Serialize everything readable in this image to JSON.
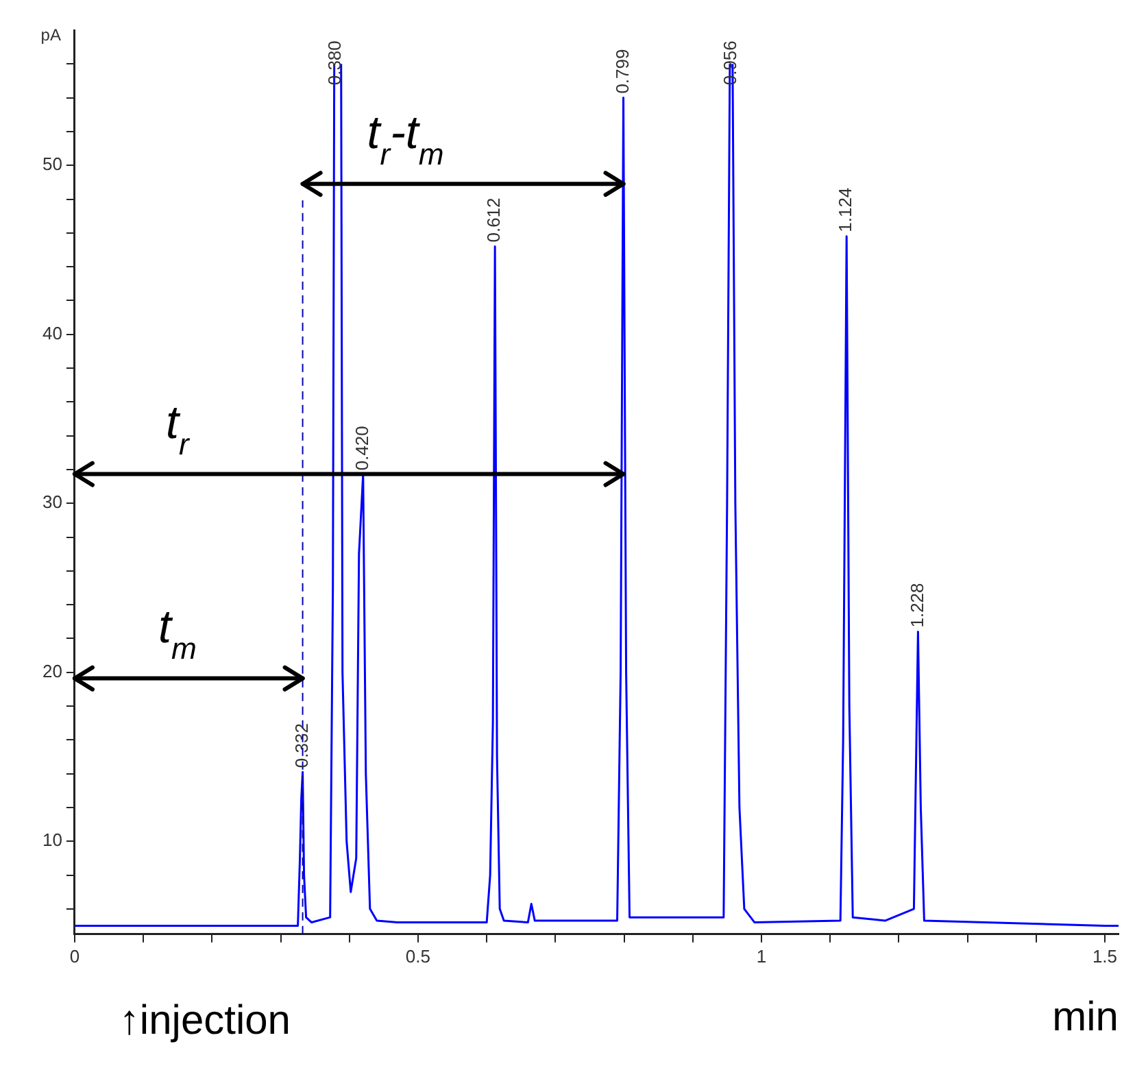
{
  "chart_data": {
    "type": "line",
    "ylabel": "pA",
    "xlabel": "min",
    "xlim": [
      0,
      1.52
    ],
    "ylim": [
      4.5,
      58
    ],
    "xticks": [
      0,
      {
        "value": 0.1,
        "label": null
      },
      {
        "value": 0.2,
        "label": null
      },
      {
        "value": 0.3,
        "label": null
      },
      {
        "value": 0.4,
        "label": null
      },
      0.5,
      {
        "value": 0.6,
        "label": null
      },
      {
        "value": 0.7,
        "label": null
      },
      {
        "value": 0.8,
        "label": null
      },
      {
        "value": 0.9,
        "label": null
      },
      1,
      {
        "value": 1.1,
        "label": null
      },
      {
        "value": 1.2,
        "label": null
      },
      {
        "value": 1.3,
        "label": null
      },
      {
        "value": 1.4,
        "label": null
      },
      1.5
    ],
    "yticks": [
      {
        "value": 6,
        "label": null
      },
      {
        "value": 8,
        "label": null
      },
      10,
      {
        "value": 12,
        "label": null
      },
      {
        "value": 14,
        "label": null
      },
      {
        "value": 16,
        "label": null
      },
      {
        "value": 18,
        "label": null
      },
      20,
      {
        "value": 22,
        "label": null
      },
      {
        "value": 24,
        "label": null
      },
      {
        "value": 26,
        "label": null
      },
      {
        "value": 28,
        "label": null
      },
      30,
      {
        "value": 32,
        "label": null
      },
      {
        "value": 34,
        "label": null
      },
      {
        "value": 36,
        "label": null
      },
      {
        "value": 38,
        "label": null
      },
      40,
      {
        "value": 42,
        "label": null
      },
      {
        "value": 44,
        "label": null
      },
      {
        "value": 46,
        "label": null
      },
      {
        "value": 48,
        "label": null
      },
      50,
      {
        "value": 52,
        "label": null
      },
      {
        "value": 54,
        "label": null
      },
      {
        "value": 56,
        "label": null
      }
    ],
    "grid": false,
    "legend": false,
    "marker": "none",
    "series": [
      {
        "color": "#0000ff",
        "x": [
          0,
          0.325,
          0.328,
          0.33,
          0.332,
          0.334,
          0.337,
          0.345,
          0.372,
          0.376,
          0.378,
          0.38,
          0.386,
          0.388,
          0.39,
          0.396,
          0.402,
          0.41,
          0.414,
          0.42,
          0.424,
          0.43,
          0.44,
          0.47,
          0.6,
          0.605,
          0.609,
          0.612,
          0.615,
          0.619,
          0.625,
          0.66,
          0.665,
          0.67,
          0.79,
          0.795,
          0.799,
          0.803,
          0.808,
          0.945,
          0.95,
          0.954,
          0.956,
          0.958,
          0.962,
          0.968,
          0.975,
          0.99,
          1.115,
          1.119,
          1.124,
          1.128,
          1.133,
          1.18,
          1.222,
          1.226,
          1.228,
          1.232,
          1.237,
          1.5,
          1.52
        ],
        "values": [
          5.0,
          5.0,
          9,
          12.5,
          14.1,
          8,
          5.5,
          5.2,
          5.5,
          25,
          56,
          null,
          null,
          56,
          20,
          10,
          7,
          9,
          27,
          31.7,
          14,
          6,
          5.3,
          5.2,
          5.2,
          8,
          17,
          45.2,
          15,
          6,
          5.3,
          5.2,
          6.3,
          5.3,
          5.3,
          20,
          54,
          20,
          5.5,
          5.5,
          30,
          56,
          null,
          56,
          30,
          12,
          6,
          5.2,
          5.3,
          16,
          45.8,
          18,
          5.5,
          5.3,
          6,
          17,
          22.4,
          12,
          5.3,
          5.0,
          5.0
        ]
      }
    ],
    "ref_lines": [
      {
        "axis": "x",
        "value": 0.332,
        "color": "#0000aa",
        "line_style": "dashed"
      }
    ],
    "annotations": [
      {
        "text": "0.332",
        "x": 0.332,
        "y": 14.1
      },
      {
        "text": "0.380",
        "x": 0.38,
        "y": 54.5
      },
      {
        "text": "0.420",
        "x": 0.42,
        "y": 31.7
      },
      {
        "text": "0.612",
        "x": 0.612,
        "y": 45.2
      },
      {
        "text": "0.799",
        "x": 0.799,
        "y": 54
      },
      {
        "text": "0.956",
        "x": 0.956,
        "y": 54.5
      },
      {
        "text": "1.124",
        "x": 1.124,
        "y": 45.8
      },
      {
        "text": "1.228",
        "x": 1.228,
        "y": 22.4
      },
      "t$_{m}$",
      "t$_{r}$",
      "t$_{r}$-t$_{m}$",
      "↑injection"
    ]
  }
}
